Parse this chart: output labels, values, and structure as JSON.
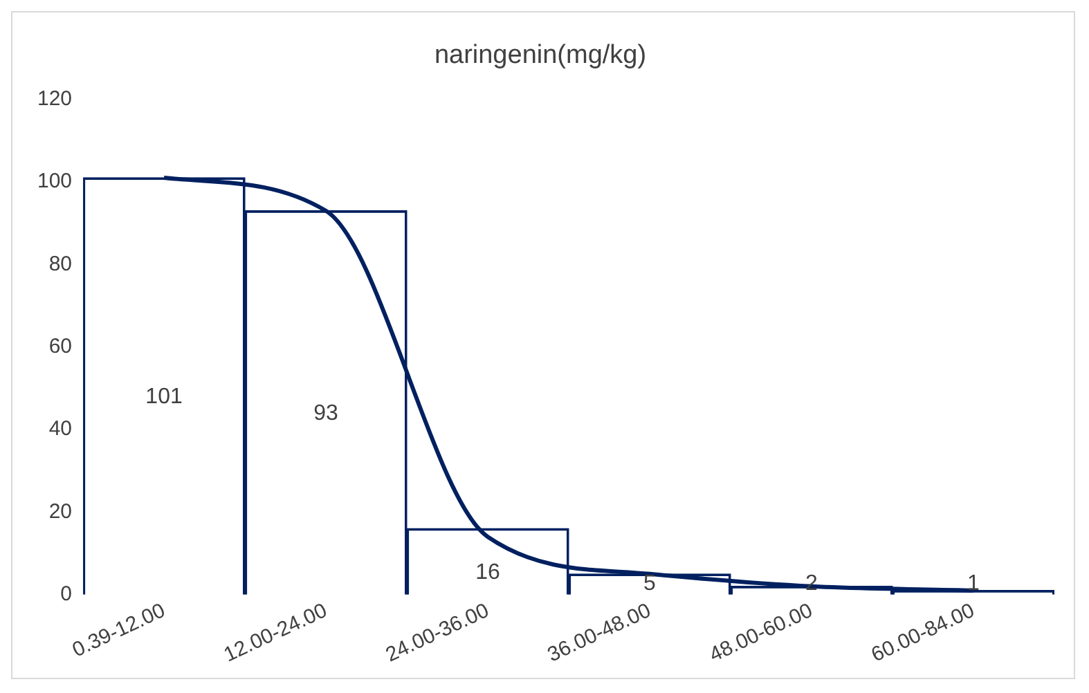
{
  "chart_data": {
    "type": "bar",
    "title": "naringenin(mg/kg)",
    "categories": [
      "0.39-12.00",
      "12.00-24.00",
      "24.00-36.00",
      "36.00-48.00",
      "48.00-60.00",
      "60.00-84.00"
    ],
    "series": [
      {
        "color": "#002060",
        "values": [
          101,
          93,
          16,
          5,
          2,
          1
        ],
        "value_labels": [
          "101",
          "93",
          "16",
          "5",
          "2",
          "1"
        ]
      },
      {
        "type": "line",
        "color": "#002060",
        "values": [
          101,
          93,
          14,
          5,
          2,
          1
        ]
      }
    ],
    "ylim": [
      0,
      120
    ],
    "yticks": [
      0,
      20,
      40,
      60,
      80,
      100,
      120
    ],
    "grid": false,
    "legend": false,
    "marker": "none"
  }
}
